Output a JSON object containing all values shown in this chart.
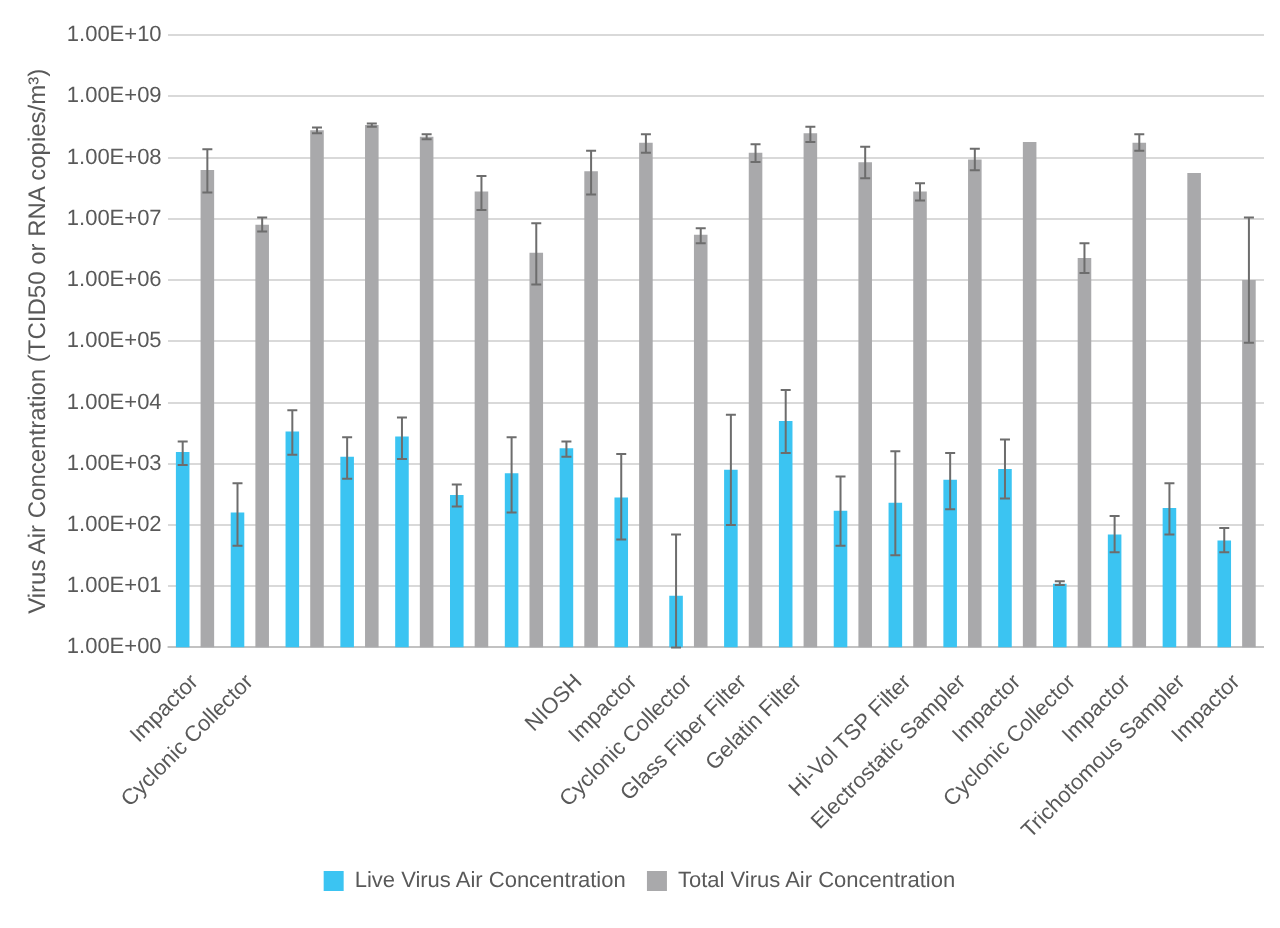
{
  "chart_data": {
    "type": "bar",
    "ylabel": "Virus Air Concentration (TCID50 or RNA copies/m³)",
    "categories": [
      "Impactor",
      "Cyclonic Collector",
      null,
      null,
      null,
      null,
      null,
      "NIOSH",
      "Impactor",
      "Cyclonic Collector",
      "Glass Fiber Filter",
      "Gelatin Filter",
      null,
      "Hi-Vol TSP Filter",
      "Electrostatic Sampler",
      "Impactor",
      "Cyclonic Collector",
      "Impactor",
      "Trichotomous Sampler",
      "Impactor"
    ],
    "series": [
      {
        "name": "Live Virus Air Concentration",
        "color": "#3bc4f2",
        "values": [
          1550,
          160,
          3360,
          1300,
          2800,
          310,
          700,
          1800,
          280,
          7,
          800,
          5000,
          170,
          230,
          550,
          820,
          11,
          70,
          190,
          56
        ],
        "errors": [
          [
            950,
            2300
          ],
          [
            46,
            480
          ],
          [
            1400,
            7500
          ],
          [
            570,
            2700
          ],
          [
            1200,
            5700
          ],
          [
            200,
            460
          ],
          [
            160,
            2700
          ],
          [
            1300,
            2300
          ],
          [
            58,
            1450
          ],
          [
            1,
            70
          ],
          [
            100,
            6300
          ],
          [
            1500,
            16000
          ],
          [
            46,
            620
          ],
          [
            32,
            1600
          ],
          [
            180,
            1500
          ],
          [
            270,
            2500
          ],
          [
            10.5,
            12
          ],
          [
            36,
            140
          ],
          [
            70,
            480
          ],
          [
            36,
            89
          ]
        ]
      },
      {
        "name": "Total Virus Air Concentration",
        "color": "#a9a9ab",
        "values": [
          63000000,
          8000000,
          280000000,
          340000000,
          220000000,
          28000000,
          2800000,
          60000000,
          175000000,
          5500000,
          120000000,
          250000000,
          84000000,
          28000000,
          93000000,
          180000000,
          2300000,
          175000000,
          56000000,
          1000000
        ],
        "errors": [
          [
            27000000,
            137000000
          ],
          [
            6200000,
            10500000
          ],
          [
            250000000,
            310000000
          ],
          [
            320000000,
            360000000
          ],
          [
            200000000,
            240000000
          ],
          [
            14000000,
            50000000
          ],
          [
            850000,
            8500000
          ],
          [
            25000000,
            130000000
          ],
          [
            120000000,
            240000000
          ],
          [
            4000000,
            7000000
          ],
          [
            85000000,
            166000000
          ],
          [
            180000000,
            320000000
          ],
          [
            46000000,
            150000000
          ],
          [
            20000000,
            38000000
          ],
          [
            62000000,
            140000000
          ],
          null,
          [
            1300000,
            4000000
          ],
          [
            130000000,
            240000000
          ],
          null,
          [
            95000,
            10500000
          ]
        ]
      }
    ],
    "log": true,
    "ylim": [
      1,
      10000000000
    ],
    "yticks": [
      {
        "value": 1,
        "label": "1.00E+00"
      },
      {
        "value": 10,
        "label": "1.00E+01"
      },
      {
        "value": 100,
        "label": "1.00E+02"
      },
      {
        "value": 1000,
        "label": "1.00E+03"
      },
      {
        "value": 10000,
        "label": "1.00E+04"
      },
      {
        "value": 100000,
        "label": "1.00E+05"
      },
      {
        "value": 1000000,
        "label": "1.00E+06"
      },
      {
        "value": 10000000,
        "label": "1.00E+07"
      },
      {
        "value": 100000000,
        "label": "1.00E+08"
      },
      {
        "value": 1000000000,
        "label": "1.00E+09"
      },
      {
        "value": 10000000000,
        "label": "1.00E+10"
      }
    ],
    "grid": "y",
    "legend": "bottom"
  }
}
